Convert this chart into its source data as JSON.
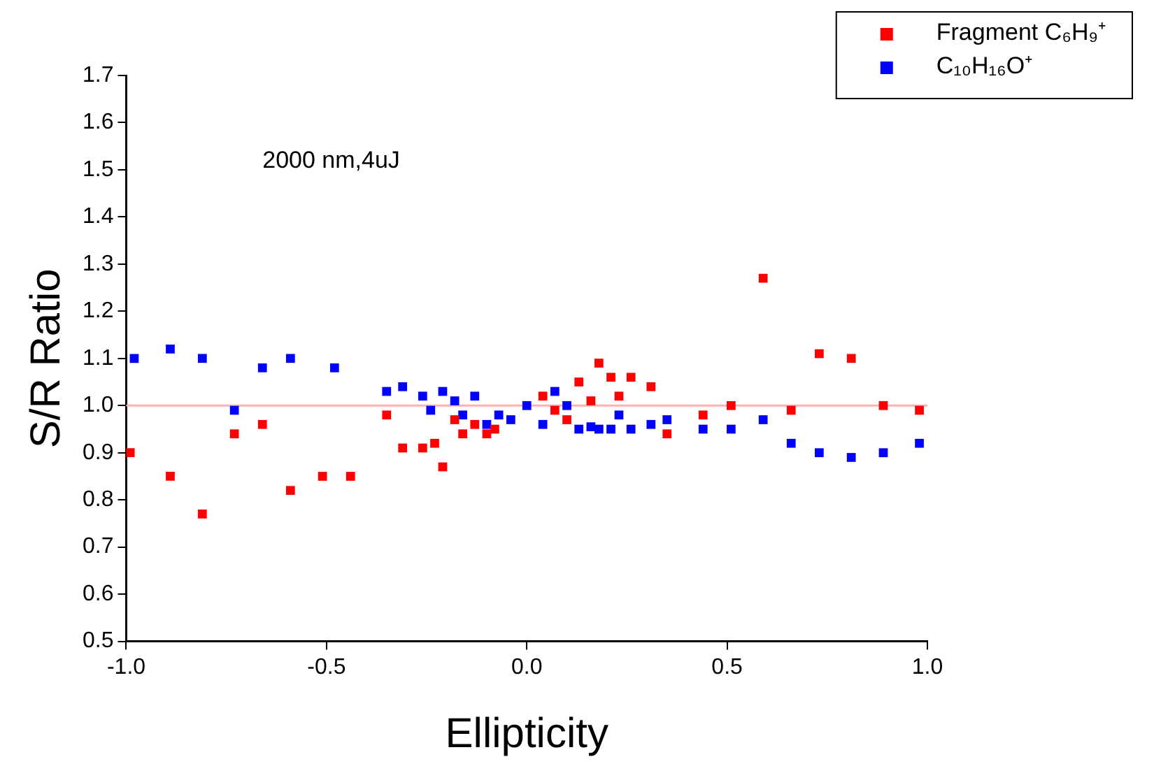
{
  "chart_data": {
    "type": "scatter",
    "xlabel": "Ellipticity",
    "ylabel": "S/R Ratio",
    "annotations": [
      "2000 nm,4uJ"
    ],
    "xlim": [
      -1,
      1
    ],
    "xticks": [
      {
        "value": -1,
        "label": "-1.0"
      },
      -0.5,
      {
        "value": 0,
        "label": "0.0"
      },
      0.5,
      {
        "value": 1,
        "label": "1.0"
      }
    ],
    "ylim": [
      0.5,
      1.7
    ],
    "yticks": [
      0.5,
      0.6,
      0.7,
      0.8,
      0.9,
      {
        "value": 1,
        "label": "1.0"
      },
      1.1,
      1.2,
      1.3,
      1.4,
      1.5,
      1.6,
      1.7
    ],
    "grid": false,
    "legend": "top right",
    "marker": "square",
    "ref_lines": [
      {
        "axis": "y",
        "value": 1.0,
        "color": "#ffb0b0"
      }
    ],
    "series": [
      {
        "name": "Fragment C₆H₉⁺",
        "color": "#ff0000",
        "x": [
          -0.99,
          -0.89,
          -0.81,
          -0.73,
          -0.66,
          -0.59,
          -0.51,
          -0.44,
          -0.35,
          -0.31,
          -0.26,
          -0.23,
          -0.21,
          -0.18,
          -0.16,
          -0.13,
          -0.1,
          -0.08,
          0.04,
          0.07,
          0.1,
          0.13,
          0.16,
          0.18,
          0.21,
          0.23,
          0.26,
          0.31,
          0.35,
          0.44,
          0.51,
          0.59,
          0.66,
          0.73,
          0.81,
          0.89,
          0.98
        ],
        "values": [
          0.9,
          0.85,
          0.77,
          0.94,
          0.96,
          0.82,
          0.85,
          0.85,
          0.98,
          0.91,
          0.91,
          0.92,
          0.87,
          0.97,
          0.94,
          0.96,
          0.94,
          0.95,
          1.02,
          0.99,
          0.97,
          1.05,
          1.01,
          1.09,
          1.06,
          1.02,
          1.06,
          1.04,
          0.94,
          0.98,
          1.0,
          1.27,
          0.99,
          1.11,
          1.1,
          1.0,
          0.99
        ]
      },
      {
        "name": "C₁₀H₁₆O⁺",
        "color": "#0000ff",
        "x": [
          -0.98,
          -0.89,
          -0.81,
          -0.73,
          -0.66,
          -0.59,
          -0.48,
          -0.35,
          -0.31,
          -0.26,
          -0.24,
          -0.21,
          -0.18,
          -0.16,
          -0.13,
          -0.1,
          -0.07,
          -0.04,
          0.0,
          0.04,
          0.07,
          0.1,
          0.13,
          0.16,
          0.18,
          0.21,
          0.23,
          0.26,
          0.31,
          0.35,
          0.44,
          0.51,
          0.59,
          0.66,
          0.73,
          0.81,
          0.89,
          0.98
        ],
        "values": [
          1.1,
          1.12,
          1.1,
          0.99,
          1.08,
          1.1,
          1.08,
          1.03,
          1.04,
          1.02,
          0.99,
          1.03,
          1.01,
          0.98,
          1.02,
          0.96,
          0.98,
          0.97,
          1.0,
          0.96,
          1.03,
          1.0,
          0.95,
          0.955,
          0.95,
          0.95,
          0.98,
          0.95,
          0.96,
          0.97,
          0.95,
          0.95,
          0.97,
          0.92,
          0.9,
          0.89,
          0.9,
          0.92
        ]
      }
    ]
  }
}
